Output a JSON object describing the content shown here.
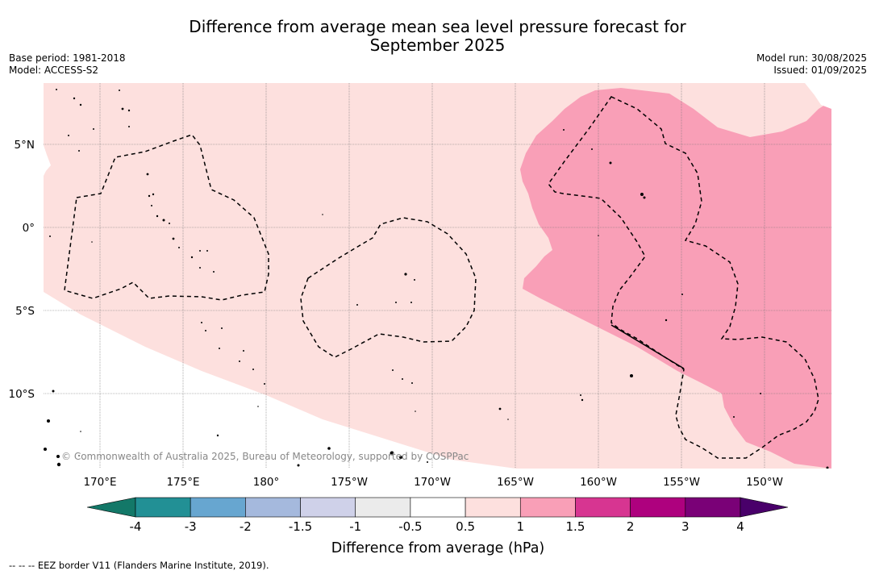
{
  "title": "Difference from average mean sea level pressure forecast for",
  "title_line2": "September 2025",
  "base_period": "Base period: 1981-2018",
  "model": "Model: ACCESS-S2",
  "model_run": "Model run: 30/08/2025",
  "issued": "Issued: 01/09/2025",
  "copyright": "© Commonwealth of Australia 2025, Bureau of Meteorology, supported by COSPPac",
  "lat_labels": [
    "5°N",
    "0°",
    "5°S",
    "10°S"
  ],
  "lon_labels": [
    "170°E",
    "175°E",
    "180°",
    "175°W",
    "170°W",
    "165°W",
    "160°W",
    "155°W",
    "150°W"
  ],
  "colorbar": {
    "title": "Difference from average (hPa)",
    "tick_labels": [
      "-4",
      "-3",
      "-2",
      "-1.5",
      "-1",
      "-0.5",
      "0.5",
      "1",
      "1.5",
      "2",
      "3",
      "4"
    ],
    "colors": [
      "#137868",
      "#229095",
      "#67a6d0",
      "#a5b9dd",
      "#cfd1e9",
      "#ebebeb",
      "#ffffff",
      "#fde0de",
      "#f99fb7",
      "#d73591",
      "#ae017e",
      "#7a0177",
      "#49006a"
    ]
  },
  "footnote": "-- -- -- EEZ border V11 (Flanders Marine Institute, 2019)."
}
